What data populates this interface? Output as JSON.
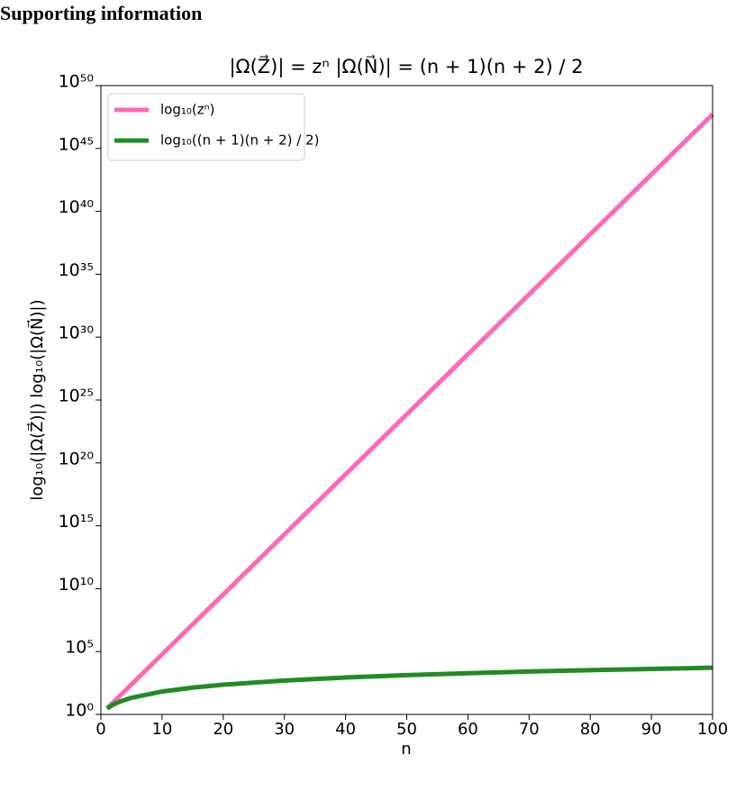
{
  "heading": "Supporting information",
  "chart_data": {
    "type": "line",
    "title": "|Ω(Z⃗)| = zⁿ    |Ω(N⃗)| = (n + 1)(n + 2) / 2",
    "x_label": "n",
    "y_label": "log₁₀(|Ω(Z⃗)|)   log₁₀(|Ω(N⃗)|)",
    "x": [
      1,
      2,
      3,
      5,
      10,
      15,
      20,
      30,
      40,
      50,
      60,
      70,
      80,
      90,
      100
    ],
    "series": [
      {
        "name": "log₁₀(zⁿ)",
        "color": "#ff69b4",
        "values": [
          3,
          9,
          27,
          243,
          59049,
          14348907,
          3486784401,
          205890000000000.0,
          1.2158e+19,
          7.179e+23,
          4.2391e+28,
          2.5031e+33,
          1.4781e+38,
          8.728e+42,
          5.1538e+47
        ]
      },
      {
        "name": "log₁₀((n + 1)(n + 2) / 2)",
        "color": "#228b22",
        "values": [
          3,
          6,
          10,
          21,
          66,
          136,
          231,
          496,
          861,
          1326,
          1891,
          2556,
          3321,
          4186,
          5151
        ]
      }
    ],
    "xlim": [
      0,
      100
    ],
    "xticks": [
      0,
      10,
      20,
      30,
      40,
      50,
      60,
      70,
      80,
      90,
      100
    ],
    "ylim": [
      1,
      1e+50
    ],
    "y_scale": "log",
    "yticks": [
      {
        "value": 1,
        "label": "10⁰"
      },
      {
        "value": 100000.0,
        "label": "10⁵"
      },
      {
        "value": 10000000000.0,
        "label": "10¹⁰"
      },
      {
        "value": 1000000000000000.0,
        "label": "10¹⁵"
      },
      {
        "value": 1e+20,
        "label": "10²⁰"
      },
      {
        "value": 1e+25,
        "label": "10²⁵"
      },
      {
        "value": 1e+30,
        "label": "10³⁰"
      },
      {
        "value": 1e+35,
        "label": "10³⁵"
      },
      {
        "value": 1e+40,
        "label": "10⁴⁰"
      },
      {
        "value": 1e+45,
        "label": "10⁴⁵"
      },
      {
        "value": 1e+50,
        "label": "10⁵⁰"
      }
    ],
    "legend": "upper left"
  }
}
